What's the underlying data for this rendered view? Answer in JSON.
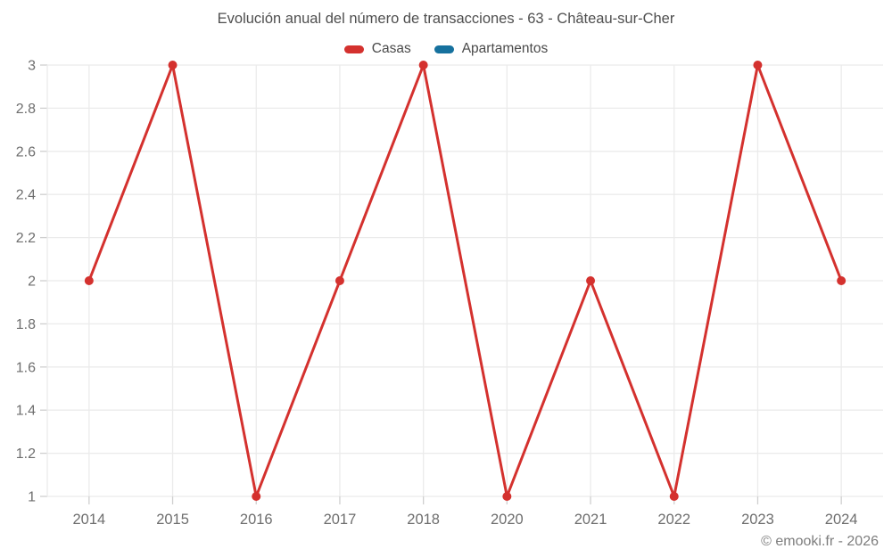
{
  "title": "Evolución anual del número de transacciones - 63 - Château-sur-Cher",
  "watermark": "© emooki.fr - 2026",
  "colors": {
    "casas": "#d4312e",
    "apartamentos": "#16719e",
    "gridline": "#ebebeb",
    "tick": "#cfcfcf",
    "axis_label": "#6e6e6e"
  },
  "chart_data": {
    "type": "line",
    "title": "Evolución anual del número de transacciones - 63 - Château-sur-Cher",
    "categories": [
      "2014",
      "2015",
      "2016",
      "2017",
      "2018",
      "2020",
      "2021",
      "2022",
      "2023",
      "2024"
    ],
    "series": [
      {
        "name": "Casas",
        "color": "#d4312e",
        "values": [
          2,
          3,
          1,
          2,
          3,
          1,
          2,
          1,
          3,
          2
        ]
      },
      {
        "name": "Apartamentos",
        "color": "#16719e",
        "values": []
      }
    ],
    "xlabel": "",
    "ylabel": "",
    "ylim": [
      1,
      3
    ],
    "ytick_step": 0.2,
    "ytick_labels": [
      "1",
      "1.2",
      "1.4",
      "1.6",
      "1.8",
      "2",
      "2.2",
      "2.4",
      "2.6",
      "2.8",
      "3"
    ],
    "grid": true,
    "legend_position": "top",
    "marker": "circle",
    "marker_radius": 5,
    "line_width": 3
  }
}
